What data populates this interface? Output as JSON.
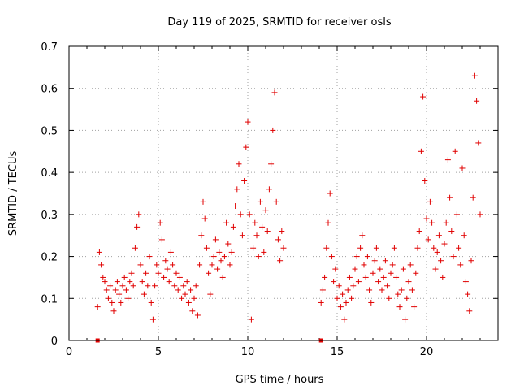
{
  "chart_data": {
    "type": "scatter",
    "title": "Day 119 of 2025, SRMTID for receiver osls",
    "xlabel": "GPS time / hours",
    "ylabel": "SRMTID / TECUs",
    "xlim": [
      0,
      24
    ],
    "ylim": [
      0,
      0.7
    ],
    "x_ticks": [
      0,
      5,
      10,
      15,
      20
    ],
    "x_tick_labels": [
      "0",
      "5",
      "10",
      "15",
      "20"
    ],
    "y_ticks": [
      0,
      0.1,
      0.2,
      0.3,
      0.4,
      0.5,
      0.6,
      0.7
    ],
    "y_tick_labels": [
      "0",
      "0.1",
      "0.2",
      "0.3",
      "0.4",
      "0.5",
      "0.6",
      "0.7"
    ],
    "grid": true,
    "marker": "+",
    "series_color": "#e00000",
    "zero_markers": [
      1.6,
      14.1
    ],
    "series": [
      {
        "name": "osls",
        "points": [
          [
            1.6,
            0.08
          ],
          [
            1.7,
            0.21
          ],
          [
            1.8,
            0.18
          ],
          [
            1.9,
            0.15
          ],
          [
            2.0,
            0.14
          ],
          [
            2.1,
            0.12
          ],
          [
            2.2,
            0.1
          ],
          [
            2.3,
            0.13
          ],
          [
            2.4,
            0.09
          ],
          [
            2.5,
            0.07
          ],
          [
            2.6,
            0.12
          ],
          [
            2.7,
            0.14
          ],
          [
            2.8,
            0.11
          ],
          [
            2.9,
            0.09
          ],
          [
            3.0,
            0.13
          ],
          [
            3.1,
            0.15
          ],
          [
            3.2,
            0.12
          ],
          [
            3.3,
            0.1
          ],
          [
            3.4,
            0.14
          ],
          [
            3.5,
            0.16
          ],
          [
            3.6,
            0.13
          ],
          [
            3.7,
            0.22
          ],
          [
            3.8,
            0.27
          ],
          [
            3.9,
            0.3
          ],
          [
            4.0,
            0.18
          ],
          [
            4.1,
            0.14
          ],
          [
            4.2,
            0.11
          ],
          [
            4.3,
            0.16
          ],
          [
            4.4,
            0.13
          ],
          [
            4.5,
            0.2
          ],
          [
            4.6,
            0.09
          ],
          [
            4.7,
            0.05
          ],
          [
            4.8,
            0.13
          ],
          [
            4.9,
            0.18
          ],
          [
            5.0,
            0.16
          ],
          [
            5.1,
            0.28
          ],
          [
            5.2,
            0.24
          ],
          [
            5.3,
            0.15
          ],
          [
            5.4,
            0.19
          ],
          [
            5.5,
            0.17
          ],
          [
            5.6,
            0.14
          ],
          [
            5.7,
            0.21
          ],
          [
            5.8,
            0.18
          ],
          [
            5.9,
            0.13
          ],
          [
            6.0,
            0.16
          ],
          [
            6.1,
            0.12
          ],
          [
            6.2,
            0.15
          ],
          [
            6.3,
            0.1
          ],
          [
            6.4,
            0.13
          ],
          [
            6.5,
            0.11
          ],
          [
            6.6,
            0.14
          ],
          [
            6.7,
            0.09
          ],
          [
            6.8,
            0.12
          ],
          [
            6.9,
            0.07
          ],
          [
            7.0,
            0.1
          ],
          [
            7.1,
            0.13
          ],
          [
            7.2,
            0.06
          ],
          [
            7.3,
            0.18
          ],
          [
            7.4,
            0.25
          ],
          [
            7.5,
            0.33
          ],
          [
            7.6,
            0.29
          ],
          [
            7.7,
            0.22
          ],
          [
            7.8,
            0.16
          ],
          [
            7.9,
            0.11
          ],
          [
            8.0,
            0.18
          ],
          [
            8.1,
            0.2
          ],
          [
            8.2,
            0.24
          ],
          [
            8.3,
            0.17
          ],
          [
            8.4,
            0.21
          ],
          [
            8.5,
            0.19
          ],
          [
            8.6,
            0.15
          ],
          [
            8.7,
            0.2
          ],
          [
            8.8,
            0.28
          ],
          [
            8.9,
            0.23
          ],
          [
            9.0,
            0.18
          ],
          [
            9.1,
            0.21
          ],
          [
            9.2,
            0.27
          ],
          [
            9.3,
            0.32
          ],
          [
            9.4,
            0.36
          ],
          [
            9.5,
            0.42
          ],
          [
            9.6,
            0.3
          ],
          [
            9.7,
            0.25
          ],
          [
            9.8,
            0.38
          ],
          [
            9.9,
            0.46
          ],
          [
            10.0,
            0.52
          ],
          [
            10.1,
            0.3
          ],
          [
            10.2,
            0.05
          ],
          [
            10.3,
            0.22
          ],
          [
            10.4,
            0.28
          ],
          [
            10.5,
            0.25
          ],
          [
            10.6,
            0.2
          ],
          [
            10.7,
            0.33
          ],
          [
            10.8,
            0.27
          ],
          [
            10.9,
            0.21
          ],
          [
            11.0,
            0.31
          ],
          [
            11.1,
            0.26
          ],
          [
            11.2,
            0.36
          ],
          [
            11.3,
            0.42
          ],
          [
            11.4,
            0.5
          ],
          [
            11.5,
            0.59
          ],
          [
            11.6,
            0.33
          ],
          [
            11.7,
            0.24
          ],
          [
            11.8,
            0.19
          ],
          [
            11.9,
            0.26
          ],
          [
            12.0,
            0.22
          ],
          [
            14.1,
            0.09
          ],
          [
            14.2,
            0.12
          ],
          [
            14.3,
            0.15
          ],
          [
            14.4,
            0.22
          ],
          [
            14.5,
            0.28
          ],
          [
            14.6,
            0.35
          ],
          [
            14.7,
            0.2
          ],
          [
            14.8,
            0.14
          ],
          [
            14.9,
            0.17
          ],
          [
            15.0,
            0.1
          ],
          [
            15.1,
            0.13
          ],
          [
            15.2,
            0.08
          ],
          [
            15.3,
            0.11
          ],
          [
            15.4,
            0.05
          ],
          [
            15.5,
            0.09
          ],
          [
            15.6,
            0.12
          ],
          [
            15.7,
            0.15
          ],
          [
            15.8,
            0.1
          ],
          [
            15.9,
            0.13
          ],
          [
            16.0,
            0.17
          ],
          [
            16.1,
            0.2
          ],
          [
            16.2,
            0.14
          ],
          [
            16.3,
            0.22
          ],
          [
            16.4,
            0.25
          ],
          [
            16.5,
            0.18
          ],
          [
            16.6,
            0.15
          ],
          [
            16.7,
            0.2
          ],
          [
            16.8,
            0.12
          ],
          [
            16.9,
            0.09
          ],
          [
            17.0,
            0.16
          ],
          [
            17.1,
            0.19
          ],
          [
            17.2,
            0.22
          ],
          [
            17.3,
            0.14
          ],
          [
            17.4,
            0.17
          ],
          [
            17.5,
            0.12
          ],
          [
            17.6,
            0.15
          ],
          [
            17.7,
            0.19
          ],
          [
            17.8,
            0.13
          ],
          [
            17.9,
            0.1
          ],
          [
            18.0,
            0.16
          ],
          [
            18.1,
            0.18
          ],
          [
            18.2,
            0.22
          ],
          [
            18.3,
            0.15
          ],
          [
            18.4,
            0.11
          ],
          [
            18.5,
            0.08
          ],
          [
            18.6,
            0.12
          ],
          [
            18.7,
            0.17
          ],
          [
            18.8,
            0.05
          ],
          [
            18.9,
            0.1
          ],
          [
            19.0,
            0.14
          ],
          [
            19.1,
            0.18
          ],
          [
            19.2,
            0.12
          ],
          [
            19.3,
            0.08
          ],
          [
            19.4,
            0.16
          ],
          [
            19.5,
            0.22
          ],
          [
            19.6,
            0.26
          ],
          [
            19.7,
            0.45
          ],
          [
            19.8,
            0.58
          ],
          [
            19.9,
            0.38
          ],
          [
            20.0,
            0.29
          ],
          [
            20.1,
            0.24
          ],
          [
            20.2,
            0.33
          ],
          [
            20.3,
            0.28
          ],
          [
            20.4,
            0.22
          ],
          [
            20.5,
            0.17
          ],
          [
            20.6,
            0.21
          ],
          [
            20.7,
            0.25
          ],
          [
            20.8,
            0.19
          ],
          [
            20.9,
            0.15
          ],
          [
            21.0,
            0.23
          ],
          [
            21.1,
            0.28
          ],
          [
            21.2,
            0.43
          ],
          [
            21.3,
            0.34
          ],
          [
            21.4,
            0.26
          ],
          [
            21.5,
            0.2
          ],
          [
            21.6,
            0.45
          ],
          [
            21.7,
            0.3
          ],
          [
            21.8,
            0.22
          ],
          [
            21.9,
            0.18
          ],
          [
            22.0,
            0.41
          ],
          [
            22.1,
            0.25
          ],
          [
            22.2,
            0.14
          ],
          [
            22.3,
            0.11
          ],
          [
            22.4,
            0.07
          ],
          [
            22.5,
            0.19
          ],
          [
            22.6,
            0.34
          ],
          [
            22.7,
            0.63
          ],
          [
            22.8,
            0.57
          ],
          [
            22.9,
            0.47
          ],
          [
            23.0,
            0.3
          ]
        ]
      }
    ]
  }
}
